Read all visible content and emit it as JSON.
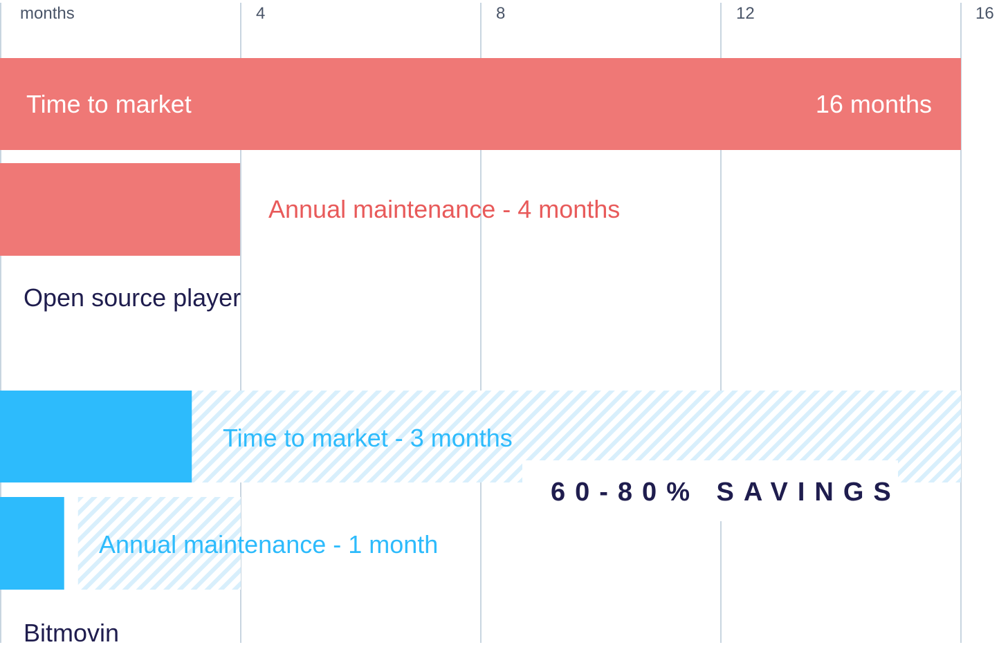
{
  "colors": {
    "open_source": "#ef7876",
    "open_source_text": "#e85a5a",
    "bitmovin": "#2dbbfc",
    "bitmovin_hatch": "#d8effc",
    "gridline": "#c8d5e0",
    "dark_text": "#1f1d4e",
    "tick_text": "#4a5568"
  },
  "chart_data": {
    "type": "bar",
    "orientation": "horizontal",
    "x_unit_label": "months",
    "xlim": [
      0,
      16
    ],
    "x_ticks": [
      4,
      8,
      12,
      16
    ],
    "grid": true,
    "groups": [
      {
        "name": "Open source player",
        "bars": [
          {
            "label": "Time to market",
            "value": 16,
            "value_label": "16 months"
          },
          {
            "label": "Annual maintenance - 4 months",
            "value": 4
          }
        ]
      },
      {
        "name": "Bitmovin",
        "bars": [
          {
            "label": "Time to market - 3 months",
            "value": 3,
            "compare_to": 16
          },
          {
            "label": "Annual maintenance - 1 month",
            "value": 1,
            "compare_to": 4
          }
        ]
      }
    ],
    "annotation": "60-80% SAVINGS"
  }
}
